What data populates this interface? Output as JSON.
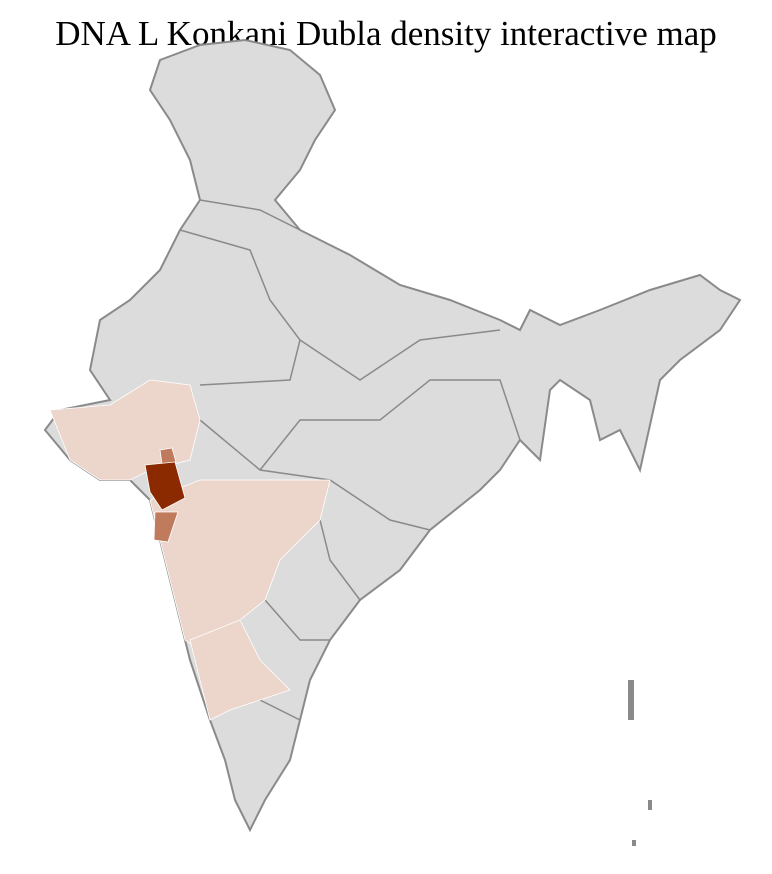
{
  "title": "DNA L Konkani Dubla density interactive map",
  "colors": {
    "background_region": "#dcdcdc",
    "border": "#8a8a8a",
    "district_lines": "#ffffff",
    "low_density": "#ecd5ca",
    "medium_density": "#c07a5c",
    "high_density": "#8b2a00"
  }
}
